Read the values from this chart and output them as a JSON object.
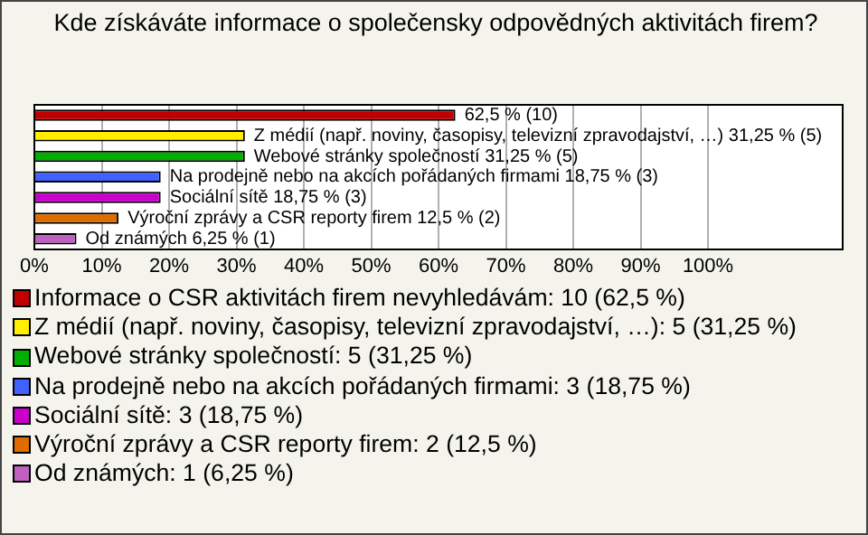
{
  "chart_data": {
    "type": "bar",
    "orientation": "horizontal",
    "title": "Kde získáváte informace o společensky odpovědných aktivitách firem?",
    "categories": [
      null
    ],
    "series": [
      {
        "name": "Informace o CSR aktivitách firem nevyhledávám: 10 (62,5 %)",
        "color": "#c00000",
        "values": [
          62.5
        ],
        "value_labels": [
          "62,5 % (10)"
        ]
      },
      {
        "name": "Z médií (např. noviny, časopisy, televizní zpravodajství, …): 5 (31,25 %)",
        "color": "#ffee00",
        "values": [
          31.25
        ],
        "value_labels": [
          "Z médií (např. noviny, časopisy, televizní zpravodajství, …) 31,25 % (5)"
        ]
      },
      {
        "name": "Webové stránky společností: 5 (31,25 %)",
        "color": "#00b000",
        "values": [
          31.25
        ],
        "value_labels": [
          "Webové stránky společností 31,25 % (5)"
        ]
      },
      {
        "name": "Na prodejně nebo na akcích pořádaných firmami: 3 (18,75 %)",
        "color": "#4060ff",
        "values": [
          18.75
        ],
        "value_labels": [
          "Na prodejně nebo na akcích pořádaných firmami 18,75 % (3)"
        ]
      },
      {
        "name": "Sociální sítě: 3 (18,75 %)",
        "color": "#cc00cc",
        "values": [
          18.75
        ],
        "value_labels": [
          "Sociální sítě 18,75 % (3)"
        ]
      },
      {
        "name": "Výroční zprávy a CSR reporty firem: 2 (12,5 %)",
        "color": "#e06c00",
        "values": [
          12.5
        ],
        "value_labels": [
          "Výroční zprávy a CSR reporty firem 12,5 % (2)"
        ]
      },
      {
        "name": "Od známých: 1 (6,25 %)",
        "color": "#c060c0",
        "values": [
          6.25
        ],
        "value_labels": [
          "Od známých 6,25 % (1)"
        ]
      }
    ],
    "xlim": [
      0,
      120
    ],
    "xticks": [
      {
        "value": 0,
        "label": "0%"
      },
      {
        "value": 10,
        "label": "10%"
      },
      {
        "value": 20,
        "label": "20%"
      },
      {
        "value": 30,
        "label": "30%"
      },
      {
        "value": 40,
        "label": "40%"
      },
      {
        "value": 50,
        "label": "50%"
      },
      {
        "value": 60,
        "label": "60%"
      },
      {
        "value": 70,
        "label": "70%"
      },
      {
        "value": 80,
        "label": "80%"
      },
      {
        "value": 90,
        "label": "90%"
      },
      {
        "value": 100,
        "label": "100%"
      }
    ],
    "grid": "x",
    "legend": "bottom",
    "tick_labels": "x"
  }
}
